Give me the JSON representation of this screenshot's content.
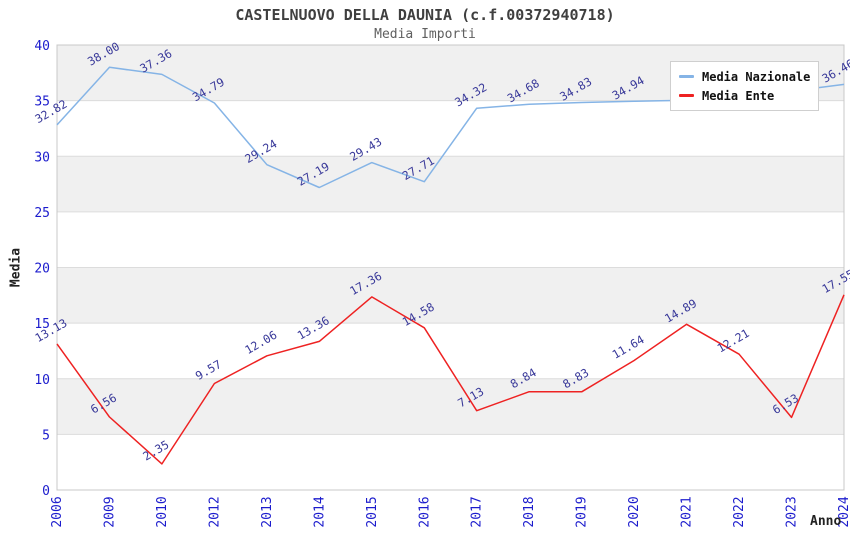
{
  "header": {
    "title": "CASTELNUOVO DELLA DAUNIA (c.f.00372940718)",
    "subtitle": "Media Importi"
  },
  "legend": {
    "items": [
      {
        "label": "Media Nazionale",
        "color": "#85b4e6"
      },
      {
        "label": "Media Ente",
        "color": "#ee2222"
      }
    ]
  },
  "axes": {
    "y_title": "Media",
    "x_title": "Anno"
  },
  "colors": {
    "band_fill": "#f0f0f0",
    "grid_line": "#dcdcdc",
    "plot_border": "#c8c8c8",
    "tick_label": "#1c1ccd",
    "point_label": "#383899"
  },
  "chart_data": {
    "type": "line",
    "title": "CASTELNUOVO DELLA DAUNIA (c.f.00372940718)",
    "subtitle": "Media Importi",
    "xlabel": "Anno",
    "ylabel": "Media",
    "ylim": [
      0,
      40
    ],
    "y_ticks": [
      0,
      5,
      10,
      15,
      20,
      25,
      30,
      35,
      40
    ],
    "grid": true,
    "legend_position": "top-right",
    "categories": [
      "2006",
      "2009",
      "2010",
      "2012",
      "2013",
      "2014",
      "2015",
      "2016",
      "2017",
      "2018",
      "2019",
      "2020",
      "2021",
      "2022",
      "2023",
      "2024"
    ],
    "series": [
      {
        "name": "Media Nazionale",
        "color": "#85b4e6",
        "values": [
          32.82,
          38.0,
          37.36,
          34.79,
          29.24,
          27.19,
          29.43,
          27.71,
          34.32,
          34.68,
          34.83,
          34.94,
          35.04,
          35.33,
          35.86,
          36.46
        ],
        "point_labels": [
          "32.82",
          "38.00",
          "37.36",
          "34.79",
          "29.24",
          "27.19",
          "29.43",
          "27.71",
          "34.32",
          "34.68",
          "34.83",
          "34.94",
          null,
          null,
          null,
          "36.46"
        ]
      },
      {
        "name": "Media Ente",
        "color": "#ee2222",
        "values": [
          13.13,
          6.56,
          2.35,
          9.57,
          12.06,
          13.36,
          17.36,
          14.58,
          7.13,
          8.84,
          8.83,
          11.64,
          14.89,
          12.21,
          6.53,
          17.55
        ],
        "point_labels": [
          "13.13",
          "6.56",
          "2.35",
          "9.57",
          "12.06",
          "13.36",
          "17.36",
          "14.58",
          "7.13",
          "8.84",
          "8.83",
          "11.64",
          "14.89",
          "12.21",
          "6.53",
          "17.55"
        ]
      }
    ]
  }
}
